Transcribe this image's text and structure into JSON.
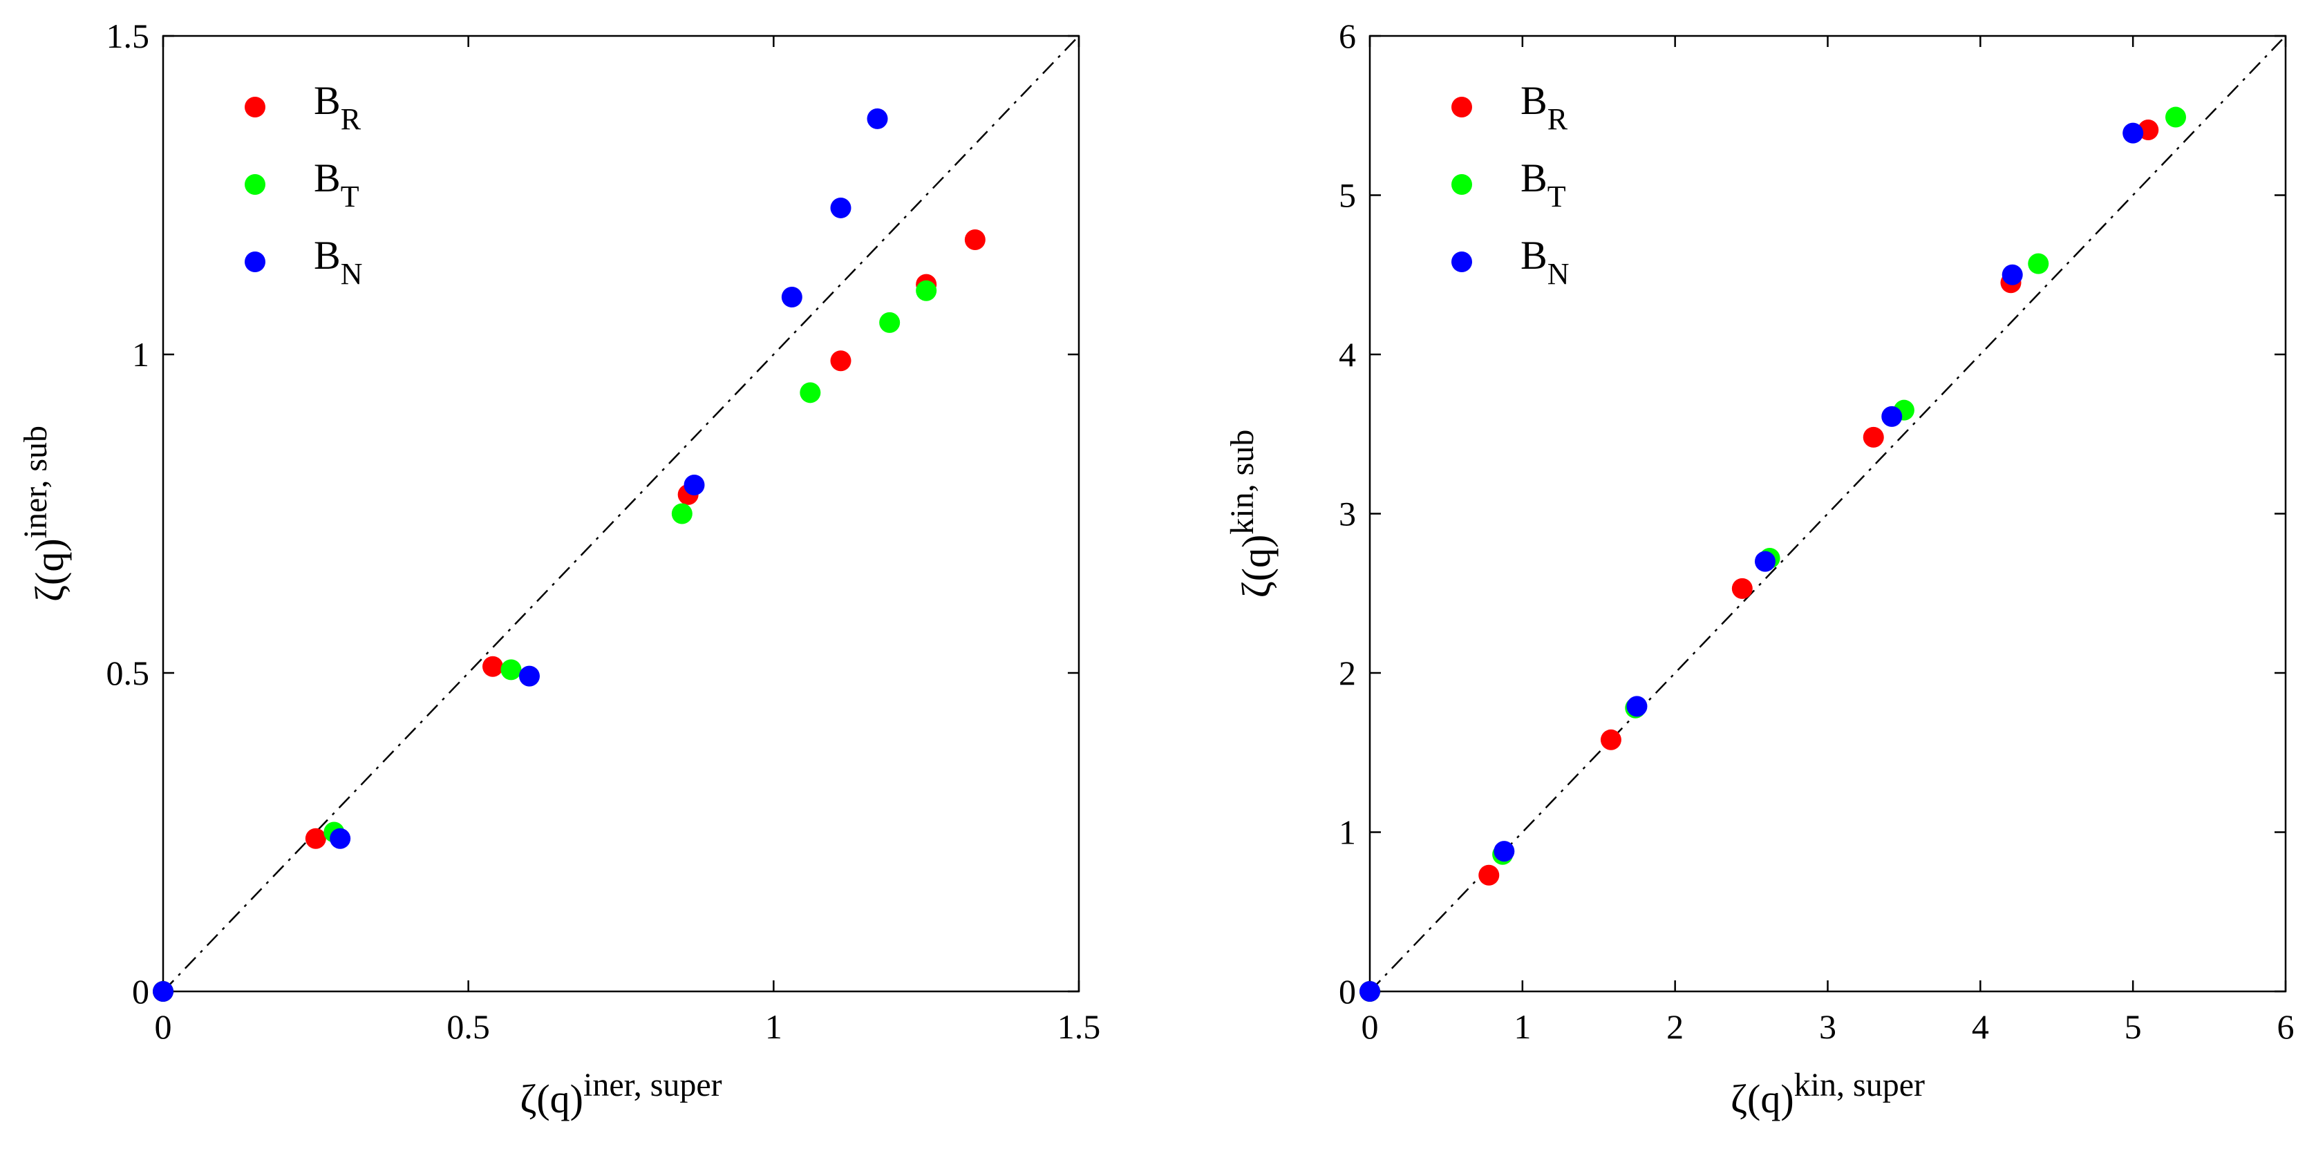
{
  "chart_data": [
    {
      "type": "scatter",
      "xlabel": {
        "base": "ζ(q)",
        "sup": "iner, super"
      },
      "ylabel": {
        "base": "ζ(q)",
        "sup": "iner, sub"
      },
      "xlim": [
        0,
        1.5
      ],
      "ylim": [
        0,
        1.5
      ],
      "xticks": [
        0,
        0.5,
        1,
        1.5
      ],
      "yticks": [
        0,
        0.5,
        1,
        1.5
      ],
      "xtick_labels": [
        "0",
        "0.5",
        "1",
        "1.5"
      ],
      "ytick_labels": [
        "0",
        "0.5",
        "1",
        "1.5"
      ],
      "reference_line": {
        "style": "dash-dot",
        "from": [
          0,
          0
        ],
        "to": [
          1.5,
          1.5
        ]
      },
      "legend_position": "top-left",
      "series": [
        {
          "name": "B",
          "sub": "R",
          "color": "#ff0000",
          "x": [
            0,
            0.25,
            0.54,
            0.86,
            1.11,
            1.25,
            1.33
          ],
          "y": [
            0,
            0.24,
            0.51,
            0.78,
            0.99,
            1.11,
            1.18
          ]
        },
        {
          "name": "B",
          "sub": "T",
          "color": "#00ff00",
          "x": [
            0,
            0.28,
            0.57,
            0.85,
            1.06,
            1.19,
            1.25
          ],
          "y": [
            0,
            0.25,
            0.505,
            0.75,
            0.94,
            1.05,
            1.1
          ]
        },
        {
          "name": "B",
          "sub": "N",
          "color": "#0000ff",
          "x": [
            0,
            0.29,
            0.6,
            0.87,
            1.03,
            1.11,
            1.17
          ],
          "y": [
            0,
            0.24,
            0.495,
            0.795,
            1.09,
            1.23,
            1.37
          ]
        }
      ]
    },
    {
      "type": "scatter",
      "xlabel": {
        "base": "ζ(q)",
        "sup": "kin, super"
      },
      "ylabel": {
        "base": "ζ(q)",
        "sup": "kin, sub"
      },
      "xlim": [
        0,
        6
      ],
      "ylim": [
        0,
        6
      ],
      "xticks": [
        0,
        1,
        2,
        3,
        4,
        5,
        6
      ],
      "yticks": [
        0,
        1,
        2,
        3,
        4,
        5,
        6
      ],
      "xtick_labels": [
        "0",
        "1",
        "2",
        "3",
        "4",
        "5",
        "6"
      ],
      "ytick_labels": [
        "0",
        "1",
        "2",
        "3",
        "4",
        "5",
        "6"
      ],
      "reference_line": {
        "style": "dash-dot",
        "from": [
          0,
          0
        ],
        "to": [
          6,
          6
        ]
      },
      "legend_position": "top-left",
      "series": [
        {
          "name": "B",
          "sub": "R",
          "color": "#ff0000",
          "x": [
            0,
            0.78,
            1.58,
            2.44,
            3.3,
            4.2,
            5.1
          ],
          "y": [
            0,
            0.73,
            1.58,
            2.53,
            3.48,
            4.45,
            5.41
          ]
        },
        {
          "name": "B",
          "sub": "T",
          "color": "#00ff00",
          "x": [
            0,
            0.87,
            1.74,
            2.62,
            3.5,
            4.38,
            5.28
          ],
          "y": [
            0,
            0.86,
            1.78,
            2.72,
            3.65,
            4.57,
            5.49
          ]
        },
        {
          "name": "B",
          "sub": "N",
          "color": "#0000ff",
          "x": [
            0,
            0.88,
            1.75,
            2.59,
            3.42,
            4.21,
            5.0
          ],
          "y": [
            0,
            0.88,
            1.79,
            2.7,
            3.61,
            4.5,
            5.39
          ]
        }
      ]
    }
  ]
}
